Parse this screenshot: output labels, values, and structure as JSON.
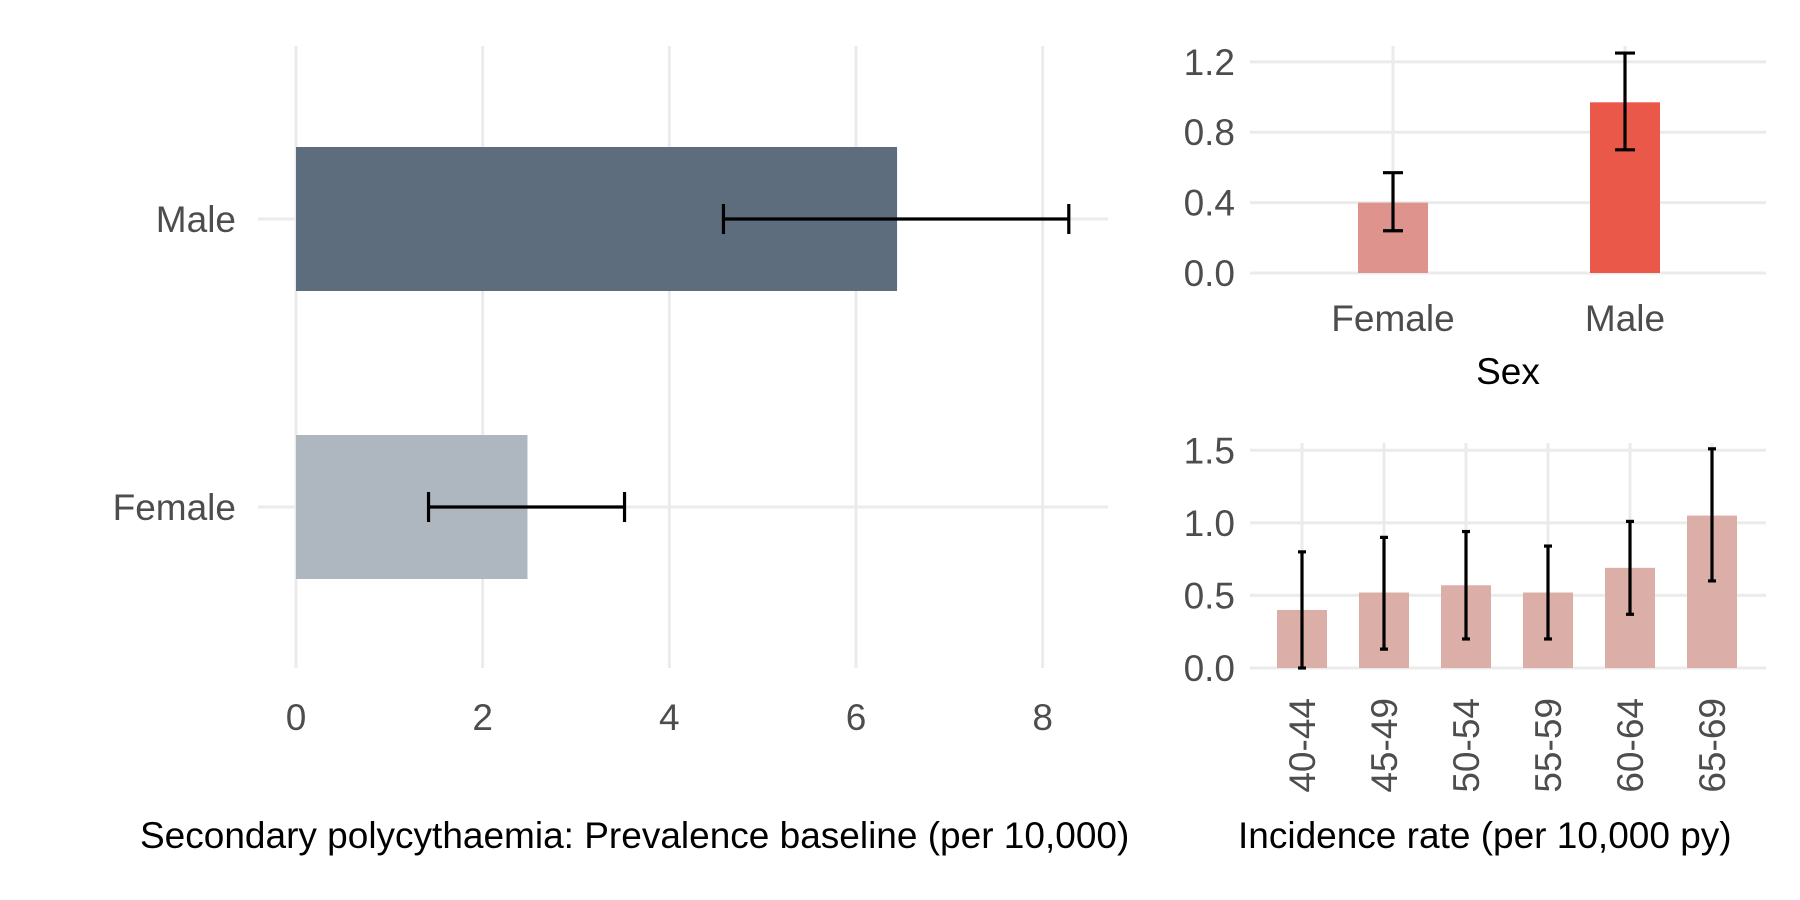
{
  "chart_data": [
    {
      "id": "prevalence",
      "type": "bar",
      "orientation": "horizontal",
      "categories": [
        "Female",
        "Male"
      ],
      "values": [
        2.48,
        6.44
      ],
      "ci_lower": [
        1.42,
        4.58
      ],
      "ci_upper": [
        3.52,
        8.28
      ],
      "colors": [
        "#aeb6bf",
        "#5d6d7e"
      ],
      "xlim": [
        0,
        8.7
      ],
      "xticks": [
        "0",
        "2",
        "4",
        "6",
        "8"
      ],
      "xlabel": "Secondary polycythaemia: Prevalence baseline (per 10,000)",
      "grid": true
    },
    {
      "id": "incidence-sex",
      "type": "bar",
      "categories": [
        "Female",
        "Male"
      ],
      "values": [
        0.4,
        0.97
      ],
      "ci_lower": [
        0.24,
        0.7
      ],
      "ci_upper": [
        0.57,
        1.25
      ],
      "colors": [
        "#de938c",
        "#ea5849"
      ],
      "ylim": [
        0,
        1.29
      ],
      "yticks": [
        "0.0",
        "0.4",
        "0.8",
        "1.2"
      ],
      "xlabel": "Sex",
      "grid": true
    },
    {
      "id": "incidence-age",
      "type": "bar",
      "categories": [
        "40-44",
        "45-49",
        "50-54",
        "55-59",
        "60-64",
        "65-69"
      ],
      "values": [
        0.4,
        0.52,
        0.57,
        0.52,
        0.69,
        1.05
      ],
      "ci_lower": [
        0.0,
        0.13,
        0.2,
        0.2,
        0.37,
        0.6
      ],
      "ci_upper": [
        0.8,
        0.9,
        0.94,
        0.84,
        1.01,
        1.51
      ],
      "colors": [
        "#dbaea8"
      ],
      "ylim": [
        0,
        1.55
      ],
      "yticks": [
        "0.0",
        "0.5",
        "1.0",
        "1.5"
      ],
      "xlabel": "Incidence rate (per 10,000 py)",
      "grid": true
    }
  ]
}
